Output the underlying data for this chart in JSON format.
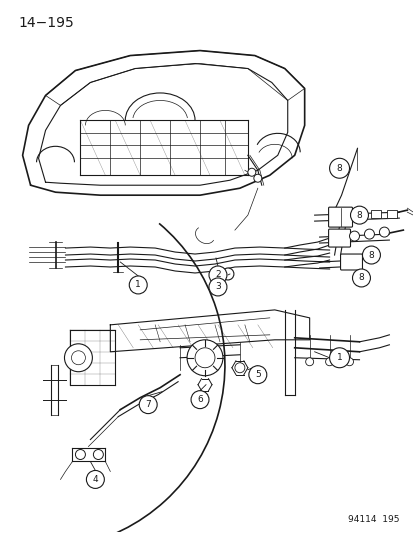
{
  "title": "14−195",
  "footer": "94114  195",
  "bg_color": "#ffffff",
  "line_color": "#1a1a1a",
  "fig_width": 4.14,
  "fig_height": 5.33,
  "dpi": 100,
  "title_fontsize": 10,
  "footer_fontsize": 6.5,
  "callout_fontsize": 6.5
}
